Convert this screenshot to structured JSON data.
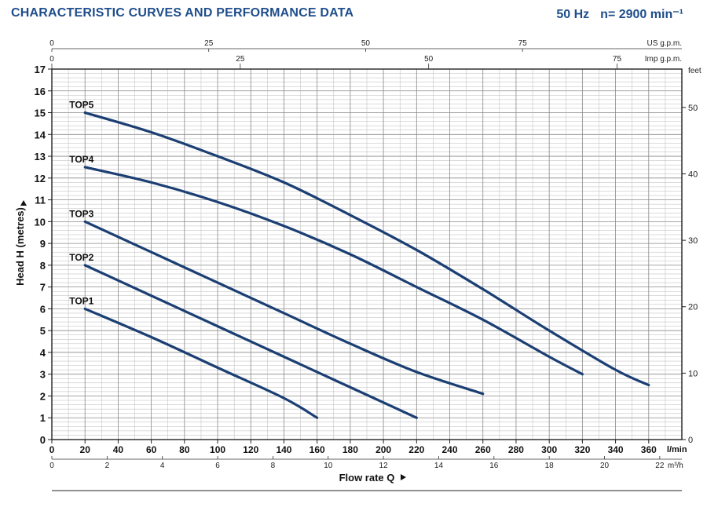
{
  "header": {
    "title": "CHARACTERISTIC CURVES AND PERFORMANCE DATA",
    "frequency": "50 Hz",
    "speed": "n= 2900 min⁻¹"
  },
  "colors": {
    "curve": "#1b3f73",
    "title": "#1f4e8c",
    "grid": "#b9b9b9"
  },
  "chart_data": {
    "type": "line",
    "xlabel": "Flow rate  Q",
    "ylabel": "Head H  (metres)",
    "xlim": [
      0,
      380
    ],
    "ylim": [
      0,
      17
    ],
    "x_unit": "l/min",
    "grid": true,
    "x_ticks": [
      "0",
      "20",
      "40",
      "60",
      "80",
      "100",
      "120",
      "140",
      "160",
      "180",
      "200",
      "220",
      "240",
      "260",
      "280",
      "300",
      "320",
      "340",
      "360"
    ],
    "y_ticks": [
      "0",
      "1",
      "2",
      "3",
      "4",
      "5",
      "6",
      "7",
      "8",
      "9",
      "10",
      "11",
      "12",
      "13",
      "14",
      "15",
      "16",
      "17"
    ],
    "secondary_axes": {
      "top_us": {
        "label": "US g.p.m.",
        "ticks": [
          "0",
          "25",
          "50",
          "75"
        ],
        "per_lmin": 0.2642
      },
      "top_imp": {
        "label": "Imp g.p.m.",
        "ticks": [
          "0",
          "25",
          "50",
          "75"
        ],
        "per_lmin": 0.22
      },
      "bottom_m3h": {
        "label": "m³/h",
        "ticks": [
          "0",
          "2",
          "4",
          "6",
          "8",
          "10",
          "12",
          "14",
          "16",
          "18",
          "20",
          "22"
        ],
        "per_lmin": 0.06
      },
      "right_feet": {
        "label": "feet",
        "ticks": [
          "0",
          "10",
          "20",
          "30",
          "40",
          "50"
        ],
        "per_metre": 3.2808
      }
    },
    "series": [
      {
        "name": "TOP1",
        "x": [
          20,
          60,
          100,
          140,
          160
        ],
        "y": [
          6,
          4.7,
          3.3,
          1.9,
          1
        ]
      },
      {
        "name": "TOP2",
        "x": [
          20,
          60,
          100,
          140,
          180,
          220
        ],
        "y": [
          8,
          6.6,
          5.2,
          3.8,
          2.4,
          1
        ]
      },
      {
        "name": "TOP3",
        "x": [
          20,
          60,
          100,
          140,
          180,
          220,
          260
        ],
        "y": [
          10,
          8.6,
          7.2,
          5.8,
          4.4,
          3.1,
          2.1
        ]
      },
      {
        "name": "TOP4",
        "x": [
          20,
          60,
          100,
          140,
          180,
          220,
          260,
          300,
          320
        ],
        "y": [
          12.5,
          11.8,
          10.9,
          9.8,
          8.5,
          7.0,
          5.5,
          3.8,
          3.0
        ]
      },
      {
        "name": "TOP5",
        "x": [
          20,
          60,
          100,
          140,
          180,
          220,
          260,
          300,
          340,
          360
        ],
        "y": [
          15,
          14.1,
          13.0,
          11.8,
          10.3,
          8.7,
          6.9,
          5.0,
          3.2,
          2.5
        ]
      }
    ]
  }
}
